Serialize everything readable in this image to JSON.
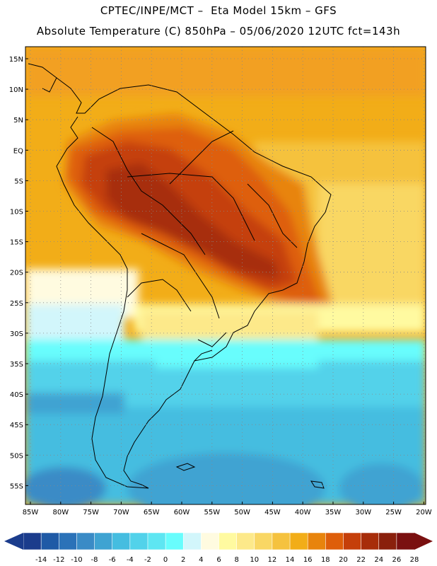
{
  "header": {
    "line1": "CPTEC/INPE/MCT –  Eta Model 15km – GFS",
    "line2": "Absolute Temperature (C) 850hPa – 05/06/2020 12UTC fct=143h"
  },
  "map": {
    "lat_labels": [
      "15N",
      "10N",
      "5N",
      "EQ",
      "5S",
      "10S",
      "15S",
      "20S",
      "25S",
      "30S",
      "35S",
      "40S",
      "45S",
      "50S",
      "55S"
    ],
    "lon_labels": [
      "85W",
      "80W",
      "75W",
      "70W",
      "65W",
      "60W",
      "55W",
      "50W",
      "45W",
      "40W",
      "35W",
      "30W",
      "25W",
      "20W"
    ],
    "grid": "dotted",
    "region": "South America"
  },
  "colorbar": {
    "labels": [
      "-14",
      "-12",
      "-10",
      "-8",
      "-6",
      "-4",
      "-2",
      "0",
      "2",
      "4",
      "6",
      "8",
      "10",
      "12",
      "14",
      "16",
      "18",
      "20",
      "22",
      "24",
      "26",
      "28"
    ],
    "colors": [
      "#1b3c8c",
      "#1f5aa6",
      "#2b72b8",
      "#3a8bc6",
      "#3fa3d2",
      "#45bde0",
      "#52d2ea",
      "#5ee6f2",
      "#68fdfd",
      "#d2f6fb",
      "#fffbe0",
      "#fffaa0",
      "#fde98a",
      "#f9d764",
      "#f5c23e",
      "#f2ad18",
      "#e8840c",
      "#de5e0a",
      "#c53f0a",
      "#a72d0a",
      "#8a200c",
      "#7a1010"
    ]
  }
}
